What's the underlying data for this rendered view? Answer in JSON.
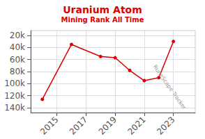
{
  "chart_data": {
    "type": "line",
    "title": "Uranium Atom",
    "subtitle": "Mining Rank All Time",
    "annotations": [
      "RuneScape Tracker"
    ],
    "x": [
      2014,
      2016,
      2018,
      2019,
      2020,
      2021,
      2022,
      2023
    ],
    "values": [
      126000,
      35000,
      55000,
      57000,
      78000,
      95000,
      90000,
      30000
    ],
    "color": "#dd0000",
    "marker": "circle",
    "xlim": [
      2013.2,
      2024.5
    ],
    "xticks": [
      2015,
      2017,
      2019,
      2021,
      2023
    ],
    "ylim": [
      148000,
      12000
    ],
    "yticks": [
      {
        "value": 20000,
        "label": "20k"
      },
      {
        "value": 40000,
        "label": "40k"
      },
      {
        "value": 60000,
        "label": "60k"
      },
      {
        "value": 80000,
        "label": "80k"
      },
      {
        "value": 100000,
        "label": "100k"
      },
      {
        "value": 120000,
        "label": "120k"
      },
      {
        "value": 140000,
        "label": "140k"
      }
    ],
    "grid": true
  }
}
